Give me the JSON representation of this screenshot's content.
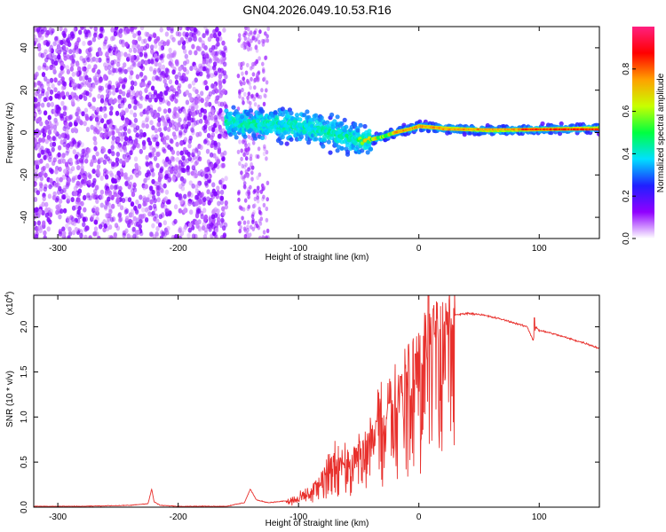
{
  "figure": {
    "title": "GN04.2026.049.10.53.R16"
  },
  "chart_data": [
    {
      "type": "heatmap",
      "title": "GN04.2026.049.10.53.R16",
      "xlabel": "Height of straight line (km)",
      "ylabel": "Frequency (Hz)",
      "xlim": [
        -320,
        150
      ],
      "ylim": [
        -50,
        50
      ],
      "xticks": [
        -300,
        -200,
        -100,
        0,
        100
      ],
      "xtick_labels": [
        "-300",
        "-200",
        "-100",
        "0",
        "100"
      ],
      "yticks": [
        -40,
        -20,
        0,
        20,
        40
      ],
      "ytick_labels": [
        "-40",
        "-20",
        "0",
        "20",
        "40"
      ],
      "colorbar": {
        "label": "Normalized spectral amplitude",
        "range": [
          0,
          1
        ],
        "ticks": [
          0.0,
          0.2,
          0.4,
          0.6,
          0.8
        ],
        "tick_labels": [
          "0.0",
          "0.2",
          "0.4",
          "0.6",
          "0.8"
        ],
        "colormap": [
          "#ffffff",
          "#9000ff",
          "#2020ff",
          "#00e0ff",
          "#00ff40",
          "#c8ff00",
          "#ffa000",
          "#ff0000",
          "#ff2080"
        ]
      },
      "features": {
        "noise_region_x": [
          -320,
          -160
        ],
        "sparse_streaks_x": [
          -150,
          -125
        ],
        "signal_start_x": -160,
        "peak_line_x": [
          -20,
          150
        ],
        "peak_line_freq_hz": 1.5,
        "signal_ridge": [
          [
            -160,
            5
          ],
          [
            -140,
            4
          ],
          [
            -120,
            4
          ],
          [
            -100,
            3
          ],
          [
            -80,
            1
          ],
          [
            -60,
            -2
          ],
          [
            -45,
            -4
          ],
          [
            -30,
            -2
          ],
          [
            -20,
            0
          ],
          [
            -5,
            2
          ],
          [
            0,
            3
          ],
          [
            20,
            2
          ],
          [
            60,
            1
          ],
          [
            100,
            1.5
          ],
          [
            150,
            2
          ]
        ]
      }
    },
    {
      "type": "line",
      "xlabel": "Height of straight line (km)",
      "ylabel": "SNR (10 * v/v)",
      "y_multiplier_label": "(x10",
      "y_multiplier_exp": "4",
      "y_multiplier_close": ")",
      "xlim": [
        -320,
        150
      ],
      "ylim": [
        0,
        2.35
      ],
      "xticks": [
        -300,
        -200,
        -100,
        0,
        100
      ],
      "xtick_labels": [
        "-300",
        "-200",
        "-100",
        "0",
        "100"
      ],
      "yticks": [
        0.0,
        0.5,
        1.0,
        1.5,
        2.0
      ],
      "ytick_labels": [
        "0.0",
        "0.5",
        "1.0",
        "1.5",
        "2.0"
      ],
      "series": [
        {
          "name": "SNR",
          "color": "#e8302c",
          "x": [
            -320,
            -280,
            -240,
            -225,
            -222,
            -220,
            -215,
            -200,
            -160,
            -145,
            -140,
            -135,
            -125,
            -110,
            -100,
            -90,
            -80,
            -70,
            -60,
            -50,
            -40,
            -30,
            -20,
            -10,
            0,
            5,
            10,
            15,
            20,
            30,
            40,
            50,
            60,
            70,
            80,
            90,
            95,
            97,
            100,
            110,
            120,
            130,
            140,
            150
          ],
          "y": [
            0.01,
            0.01,
            0.02,
            0.04,
            0.2,
            0.06,
            0.02,
            0.01,
            0.01,
            0.05,
            0.2,
            0.08,
            0.05,
            0.07,
            0.1,
            0.18,
            0.35,
            0.6,
            0.5,
            0.65,
            0.8,
            1.1,
            1.3,
            1.55,
            1.75,
            1.9,
            2.05,
            2.08,
            2.1,
            2.13,
            2.15,
            2.14,
            2.11,
            2.08,
            2.04,
            2.0,
            1.85,
            2.0,
            1.96,
            1.93,
            1.89,
            1.85,
            1.81,
            1.76
          ]
        }
      ],
      "spikes": [
        [
          -35,
          0.95
        ],
        [
          -25,
          1.15
        ],
        [
          -15,
          1.45
        ],
        [
          -3,
          1.7
        ],
        [
          8,
          2.35
        ],
        [
          12,
          2.2
        ],
        [
          96,
          2.1
        ]
      ]
    }
  ]
}
